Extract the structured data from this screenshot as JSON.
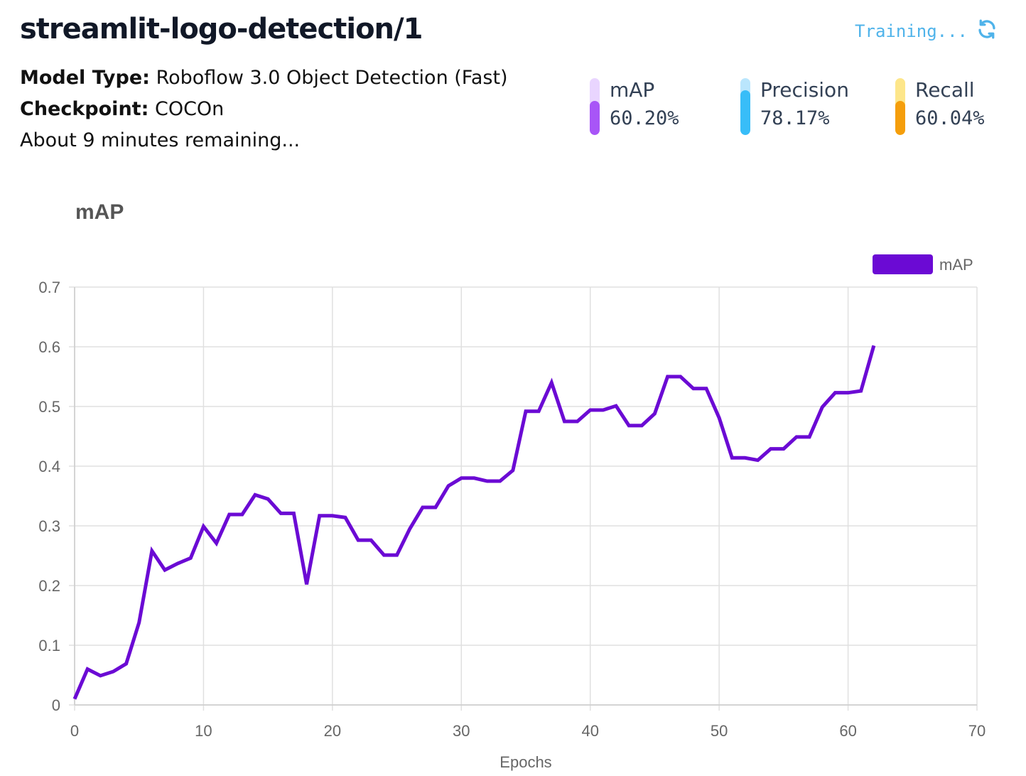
{
  "header": {
    "title": "streamlit-logo-detection/1",
    "status": "Training...",
    "status_icon": "refresh-icon",
    "model_type_label": "Model Type:",
    "model_type": "Roboflow 3.0 Object Detection (Fast)",
    "checkpoint_label": "Checkpoint:",
    "checkpoint": "COCOn",
    "remaining": "About 9 minutes remaining..."
  },
  "metrics": [
    {
      "label": "mAP",
      "value": "60.20%",
      "percent": 60.2,
      "color": "#a855f7",
      "track": "#e9d5ff"
    },
    {
      "label": "Precision",
      "value": "78.17%",
      "percent": 78.17,
      "color": "#38bdf8",
      "track": "#bae6fd"
    },
    {
      "label": "Recall",
      "value": "60.04%",
      "percent": 60.04,
      "color": "#f59e0b",
      "track": "#fde68a"
    }
  ],
  "chart_data": {
    "type": "line",
    "title": "mAP",
    "xlabel": "Epochs",
    "ylabel": "",
    "xlim": [
      0,
      70
    ],
    "ylim": [
      0,
      0.7
    ],
    "xticks": [
      "0",
      "10",
      "20",
      "30",
      "40",
      "50",
      "60",
      "70"
    ],
    "yticks": [
      "0",
      "0.1",
      "0.2",
      "0.3",
      "0.4",
      "0.5",
      "0.6",
      "0.7"
    ],
    "grid": true,
    "legend": "top-right",
    "series": [
      {
        "name": "mAP",
        "color": "#6b0ad4",
        "x": [
          0,
          1,
          2,
          3,
          4,
          5,
          6,
          7,
          8,
          9,
          10,
          11,
          12,
          13,
          14,
          15,
          16,
          17,
          18,
          19,
          20,
          21,
          22,
          23,
          24,
          25,
          26,
          27,
          28,
          29,
          30,
          31,
          32,
          33,
          34,
          35,
          36,
          37,
          38,
          39,
          40,
          41,
          42,
          43,
          44,
          45,
          46,
          47,
          48,
          49,
          50,
          51,
          52,
          53,
          54,
          55,
          56,
          57,
          58,
          59,
          60,
          61,
          62
        ],
        "values": [
          0.01,
          0.06,
          0.049,
          0.056,
          0.069,
          0.138,
          0.258,
          0.226,
          0.237,
          0.246,
          0.299,
          0.271,
          0.319,
          0.319,
          0.352,
          0.345,
          0.321,
          0.321,
          0.202,
          0.317,
          0.317,
          0.314,
          0.276,
          0.276,
          0.251,
          0.251,
          0.295,
          0.331,
          0.331,
          0.367,
          0.38,
          0.38,
          0.375,
          0.375,
          0.393,
          0.492,
          0.492,
          0.54,
          0.475,
          0.475,
          0.494,
          0.494,
          0.501,
          0.468,
          0.468,
          0.488,
          0.55,
          0.55,
          0.53,
          0.53,
          0.481,
          0.414,
          0.414,
          0.41,
          0.429,
          0.429,
          0.449,
          0.449,
          0.499,
          0.523,
          0.523,
          0.526,
          0.602
        ]
      }
    ]
  }
}
